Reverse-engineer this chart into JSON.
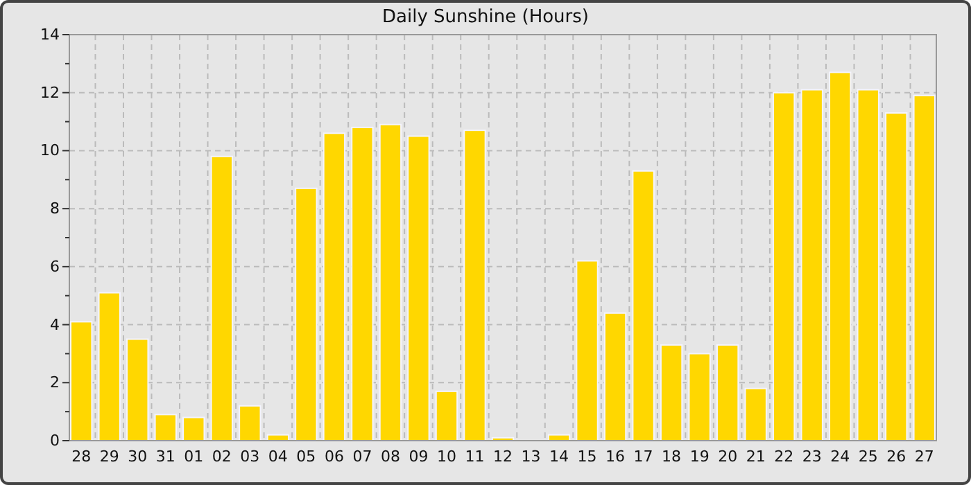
{
  "chart_data": {
    "type": "bar",
    "title": "Daily Sunshine (Hours)",
    "categories": [
      "28",
      "29",
      "30",
      "31",
      "01",
      "02",
      "03",
      "04",
      "05",
      "06",
      "07",
      "08",
      "09",
      "10",
      "11",
      "12",
      "13",
      "14",
      "15",
      "16",
      "17",
      "18",
      "19",
      "20",
      "21",
      "22",
      "23",
      "24",
      "25",
      "26",
      "27"
    ],
    "values": [
      4.1,
      5.1,
      3.5,
      0.9,
      0.8,
      9.8,
      1.2,
      0.2,
      8.7,
      10.6,
      10.8,
      10.9,
      10.5,
      1.7,
      10.7,
      0.1,
      0,
      0.2,
      6.2,
      4.4,
      9.3,
      3.3,
      3.0,
      3.3,
      1.8,
      12.0,
      12.1,
      12.7,
      12.1,
      11.3,
      11.9
    ],
    "color": "#ffd700",
    "ylim": [
      0,
      14
    ],
    "yticks": [
      0,
      {
        "value": 1,
        "label": null
      },
      2,
      {
        "value": 3,
        "label": null
      },
      4,
      {
        "value": 5,
        "label": null
      },
      6,
      {
        "value": 7,
        "label": null
      },
      8,
      {
        "value": 9,
        "label": null
      },
      10,
      {
        "value": 11,
        "label": null
      },
      12,
      {
        "value": 13,
        "label": null
      },
      14
    ],
    "grid": true
  }
}
